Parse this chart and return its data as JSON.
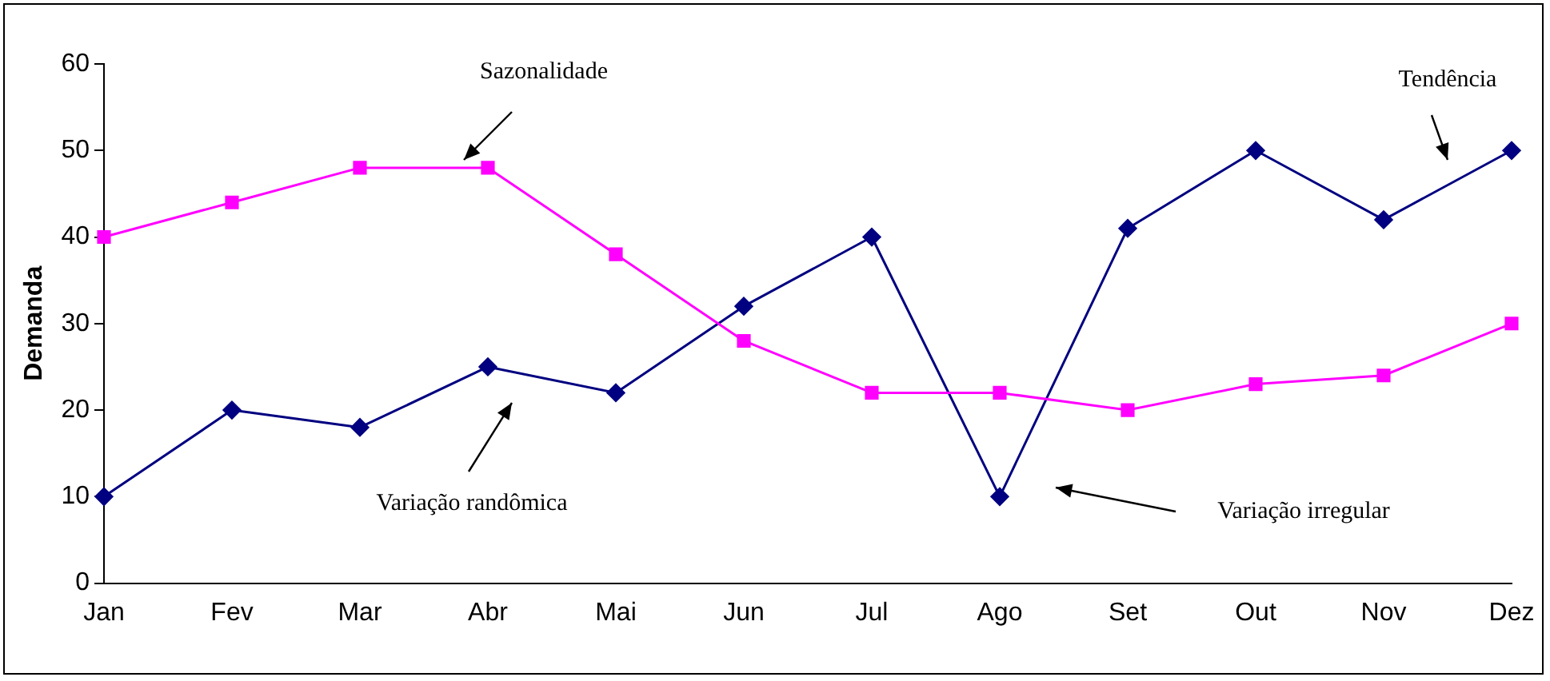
{
  "chart_data": {
    "type": "line",
    "ylabel": "Demanda",
    "categories": [
      "Jan",
      "Fev",
      "Mar",
      "Abr",
      "Mai",
      "Jun",
      "Jul",
      "Ago",
      "Set",
      "Out",
      "Nov",
      "Dez"
    ],
    "series": [
      {
        "color": "#ff00ff",
        "marker": "square",
        "values": [
          40,
          44,
          48,
          48,
          38,
          28,
          22,
          22,
          20,
          23,
          24,
          30
        ]
      },
      {
        "color": "#000080",
        "marker": "diamond",
        "values": [
          10,
          20,
          18,
          25,
          22,
          32,
          40,
          10,
          41,
          50,
          42,
          50
        ]
      }
    ],
    "ylim": [
      0,
      60
    ],
    "yticks": [
      0,
      10,
      20,
      30,
      40,
      50,
      60
    ],
    "grid": false,
    "legend": false,
    "line_style": "solid",
    "annotations": [
      "Sazonalidade",
      "Tendência",
      "Variação randômica",
      "Variação irregular"
    ]
  }
}
